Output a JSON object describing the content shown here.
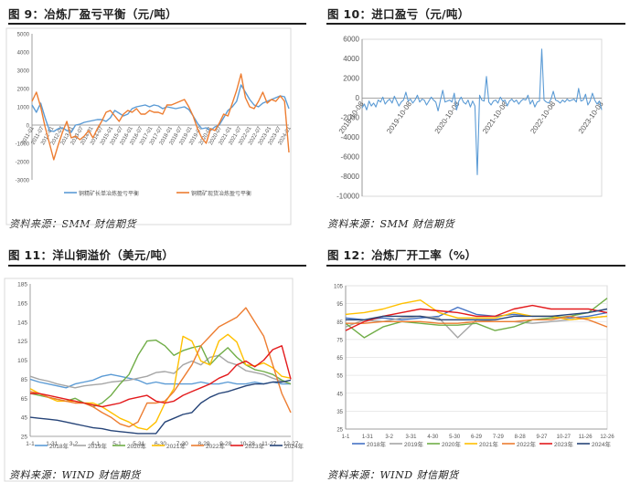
{
  "colors": {
    "blue": "#5b9bd5",
    "orange": "#ed7d31",
    "gray": "#a5a5a5",
    "yellow": "#ffc000",
    "darkblue": "#4472c4",
    "green": "#70ad47",
    "navy": "#264478",
    "red": "#e31a1c",
    "teal": "#7fb6c9"
  },
  "panel9": {
    "title": "图 9：冶炼厂盈亏平衡（元/吨）",
    "source": "资料来源：SMM  财信期货"
  },
  "panel10": {
    "title": "图 10：进口盈亏（元/吨）",
    "source": "资料来源：SMM  财信期货"
  },
  "panel11": {
    "title": "图 11：洋山铜溢价（美元/吨）",
    "source": "资料来源：WIND  财信期货"
  },
  "panel12": {
    "title": "图 12：冶炼厂开工率（%）",
    "source": "资料来源：WIND  财信期货"
  },
  "chart_data": [
    {
      "type": "line",
      "ylim": [
        -3000,
        5000
      ],
      "yticks": [
        "5000",
        "4000",
        "3000",
        "2000",
        "1000",
        "0",
        "-1000",
        "-2000",
        "-3000"
      ],
      "xtick_labels": [
        "2011-01",
        "2011-07",
        "2012-01",
        "2012-07",
        "2013-01",
        "2013-07",
        "2014-01",
        "2014-07",
        "2015-01",
        "2015-07",
        "2016-01",
        "2016-07",
        "2017-01",
        "2017-07",
        "2018-01",
        "2018-07",
        "2019-01",
        "2019-07",
        "2020-01",
        "2020-07",
        "2021-01",
        "2021-07",
        "2022-01",
        "2022-07",
        "2023-01",
        "2023-07",
        "2024-01"
      ],
      "series": [
        {
          "name": "铜精矿长单冶炼盈亏平衡",
          "color": "blue",
          "values": [
            1100,
            700,
            1200,
            400,
            -300,
            -350,
            -200,
            -150,
            -300,
            -400,
            0,
            50,
            150,
            200,
            250,
            300,
            300,
            200,
            400,
            800,
            650,
            500,
            600,
            900,
            1000,
            1050,
            1100,
            1000,
            1100,
            1050,
            900,
            1000,
            950,
            900,
            950,
            1000,
            850,
            500,
            100,
            -200,
            -150,
            -300,
            -100,
            0,
            400,
            800,
            1000,
            1300,
            2200,
            1800,
            1400,
            1100,
            1000,
            1200,
            1300,
            1400,
            1500,
            1600,
            1550,
            900
          ]
        },
        {
          "name": "铜精矿现货冶炼盈亏平衡",
          "color": "orange",
          "values": [
            1300,
            1800,
            1000,
            -100,
            -1000,
            -1900,
            -1100,
            -400,
            200,
            -700,
            -600,
            -800,
            -600,
            -300,
            -700,
            -200,
            200,
            700,
            800,
            500,
            200,
            600,
            800,
            700,
            900,
            600,
            600,
            800,
            700,
            700,
            600,
            1100,
            1100,
            1200,
            1300,
            1400,
            1000,
            500,
            -200,
            -700,
            -1000,
            -200,
            -300,
            100,
            600,
            500,
            1200,
            1900,
            2800,
            1500,
            1000,
            900,
            1300,
            1800,
            1200,
            1400,
            1300,
            1600,
            1300,
            -1500
          ]
        }
      ]
    },
    {
      "type": "line",
      "ylim": [
        -10000,
        6000
      ],
      "yticks": [
        "6000",
        "4000",
        "2000",
        "0",
        "-2000",
        "-4000",
        "-6000",
        "-8000",
        "-10000"
      ],
      "xtick_labels": [
        "2018-10-08",
        "2019-10-08",
        "2020-10-08",
        "2021-10-08",
        "2022-10-08",
        "2023-10-08"
      ],
      "series": [
        {
          "name": "进口盈亏",
          "color": "blue",
          "values": [
            -1000,
            -600,
            -1200,
            -300,
            -800,
            -500,
            -900,
            -200,
            -400,
            100,
            -600,
            -300,
            -100,
            -500,
            200,
            -300,
            -800,
            -400,
            -200,
            600,
            -300,
            -100,
            -500,
            -200,
            300,
            -400,
            -100,
            -200,
            -700,
            -300,
            100,
            -200,
            -400,
            -1300,
            -200,
            800,
            -400,
            -300,
            -200,
            -400,
            500,
            -1200,
            -300,
            100,
            -400,
            -600,
            -200,
            -900,
            -300,
            -800,
            -7800,
            300,
            -200,
            -300,
            2200,
            -400,
            -700,
            -300,
            -200,
            -500,
            100,
            -300,
            -200,
            -800,
            -300,
            -100,
            -400,
            -200,
            -600,
            -300,
            -100,
            -200,
            300,
            -600,
            -200,
            -900,
            -400,
            -300,
            5000,
            -200,
            -400,
            -500,
            -100,
            700,
            -200,
            -300,
            -500,
            -200,
            -400,
            -100,
            -300,
            -200,
            -100,
            -400,
            1000,
            -300,
            -200,
            400,
            -700,
            -300,
            500,
            -200,
            -600,
            -300,
            -1200
          ]
        }
      ]
    },
    {
      "type": "line",
      "ylim": [
        25,
        185
      ],
      "yticks": [
        "185",
        "165",
        "145",
        "125",
        "105",
        "85",
        "65",
        "45",
        "25"
      ],
      "xtick_labels": [
        "1-1",
        "1-31",
        "3-2",
        "4-1",
        "5-1",
        "5-31",
        "6-30",
        "7-30",
        "8-29",
        "9-28",
        "10-28",
        "11-27",
        "12-27"
      ],
      "series": [
        {
          "name": "2018年",
          "color": "blue",
          "values": [
            85,
            82,
            80,
            78,
            76,
            80,
            82,
            84,
            88,
            90,
            88,
            86,
            84,
            80,
            82,
            80,
            80,
            80,
            80,
            82,
            80,
            80,
            82,
            80,
            80,
            82,
            80,
            82,
            80,
            80
          ]
        },
        {
          "name": "2019年",
          "color": "gray",
          "values": [
            88,
            85,
            83,
            80,
            78,
            76,
            78,
            79,
            80,
            82,
            83,
            84,
            86,
            88,
            92,
            93,
            91,
            100,
            104,
            100,
            108,
            110,
            103,
            100,
            94,
            92,
            90,
            86,
            83,
            80
          ]
        },
        {
          "name": "2020年",
          "color": "green",
          "values": [
            70,
            68,
            66,
            64,
            62,
            65,
            60,
            56,
            60,
            68,
            80,
            90,
            110,
            125,
            126,
            120,
            110,
            115,
            118,
            120,
            100,
            110,
            118,
            108,
            100,
            95,
            93,
            90,
            84,
            80
          ]
        },
        {
          "name": "2021年",
          "color": "yellow",
          "values": [
            75,
            70,
            66,
            62,
            62,
            62,
            60,
            60,
            56,
            50,
            44,
            40,
            34,
            32,
            40,
            60,
            75,
            130,
            125,
            104,
            100,
            125,
            132,
            124,
            100,
            99,
            102,
            97,
            88,
            86
          ]
        },
        {
          "name": "2022年",
          "color": "orange",
          "values": [
            72,
            70,
            66,
            64,
            62,
            60,
            60,
            56,
            50,
            45,
            38,
            35,
            40,
            60,
            60,
            62,
            72,
            86,
            100,
            120,
            130,
            140,
            145,
            150,
            160,
            145,
            130,
            100,
            70,
            50
          ]
        },
        {
          "name": "2023年",
          "color": "red",
          "values": [
            70,
            70,
            68,
            66,
            64,
            62,
            60,
            58,
            56,
            58,
            60,
            64,
            66,
            68,
            62,
            60,
            62,
            68,
            72,
            76,
            80,
            86,
            90,
            100,
            104,
            98,
            105,
            116,
            120,
            85
          ]
        },
        {
          "name": "2024年",
          "color": "navy",
          "values": [
            45,
            44,
            43,
            42,
            40,
            38,
            36,
            34,
            33,
            31,
            30,
            29,
            28,
            28,
            28,
            40,
            44,
            48,
            50,
            60,
            66,
            70,
            72,
            75,
            78,
            80,
            80,
            82,
            82,
            84
          ]
        }
      ]
    },
    {
      "type": "line",
      "ylim": [
        25,
        105
      ],
      "yticks": [
        "105",
        "95",
        "85",
        "75",
        "65",
        "55",
        "45",
        "35",
        "25"
      ],
      "xtick_labels": [
        "1-1",
        "1-31",
        "3-2",
        "3-31",
        "4-30",
        "5-30",
        "6-29",
        "7-29",
        "8-28",
        "9-27",
        "10-27",
        "11-26",
        "12-26"
      ],
      "series": [
        {
          "name": "2018年",
          "color": "darkblue",
          "values": [
            87,
            86,
            87,
            86,
            87,
            88,
            93,
            89,
            88,
            89,
            88,
            88,
            87,
            88,
            90
          ]
        },
        {
          "name": "2019年",
          "color": "gray",
          "values": [
            82,
            86,
            85,
            87,
            88,
            87,
            76,
            86,
            85,
            85,
            84,
            85,
            86,
            87,
            88
          ]
        },
        {
          "name": "2020年",
          "color": "green",
          "values": [
            84,
            76,
            82,
            85,
            84,
            83,
            83,
            84,
            80,
            82,
            86,
            87,
            88,
            90,
            98
          ]
        },
        {
          "name": "2021年",
          "color": "yellow",
          "values": [
            89,
            90,
            92,
            95,
            97,
            90,
            87,
            87,
            87,
            90,
            88,
            88,
            86,
            87,
            88
          ]
        },
        {
          "name": "2022年",
          "color": "orange",
          "values": [
            84,
            84,
            85,
            85,
            85,
            84,
            84,
            85,
            85,
            85,
            86,
            86,
            88,
            86,
            82
          ]
        },
        {
          "name": "2023年",
          "color": "red",
          "values": [
            80,
            85,
            88,
            90,
            92,
            91,
            90,
            88,
            88,
            92,
            94,
            92,
            92,
            92,
            90
          ]
        },
        {
          "name": "2024年",
          "color": "navy",
          "values": [
            86,
            86,
            88,
            88,
            88,
            86,
            86,
            86,
            86,
            88,
            88,
            88,
            89,
            90,
            92
          ]
        }
      ]
    }
  ]
}
